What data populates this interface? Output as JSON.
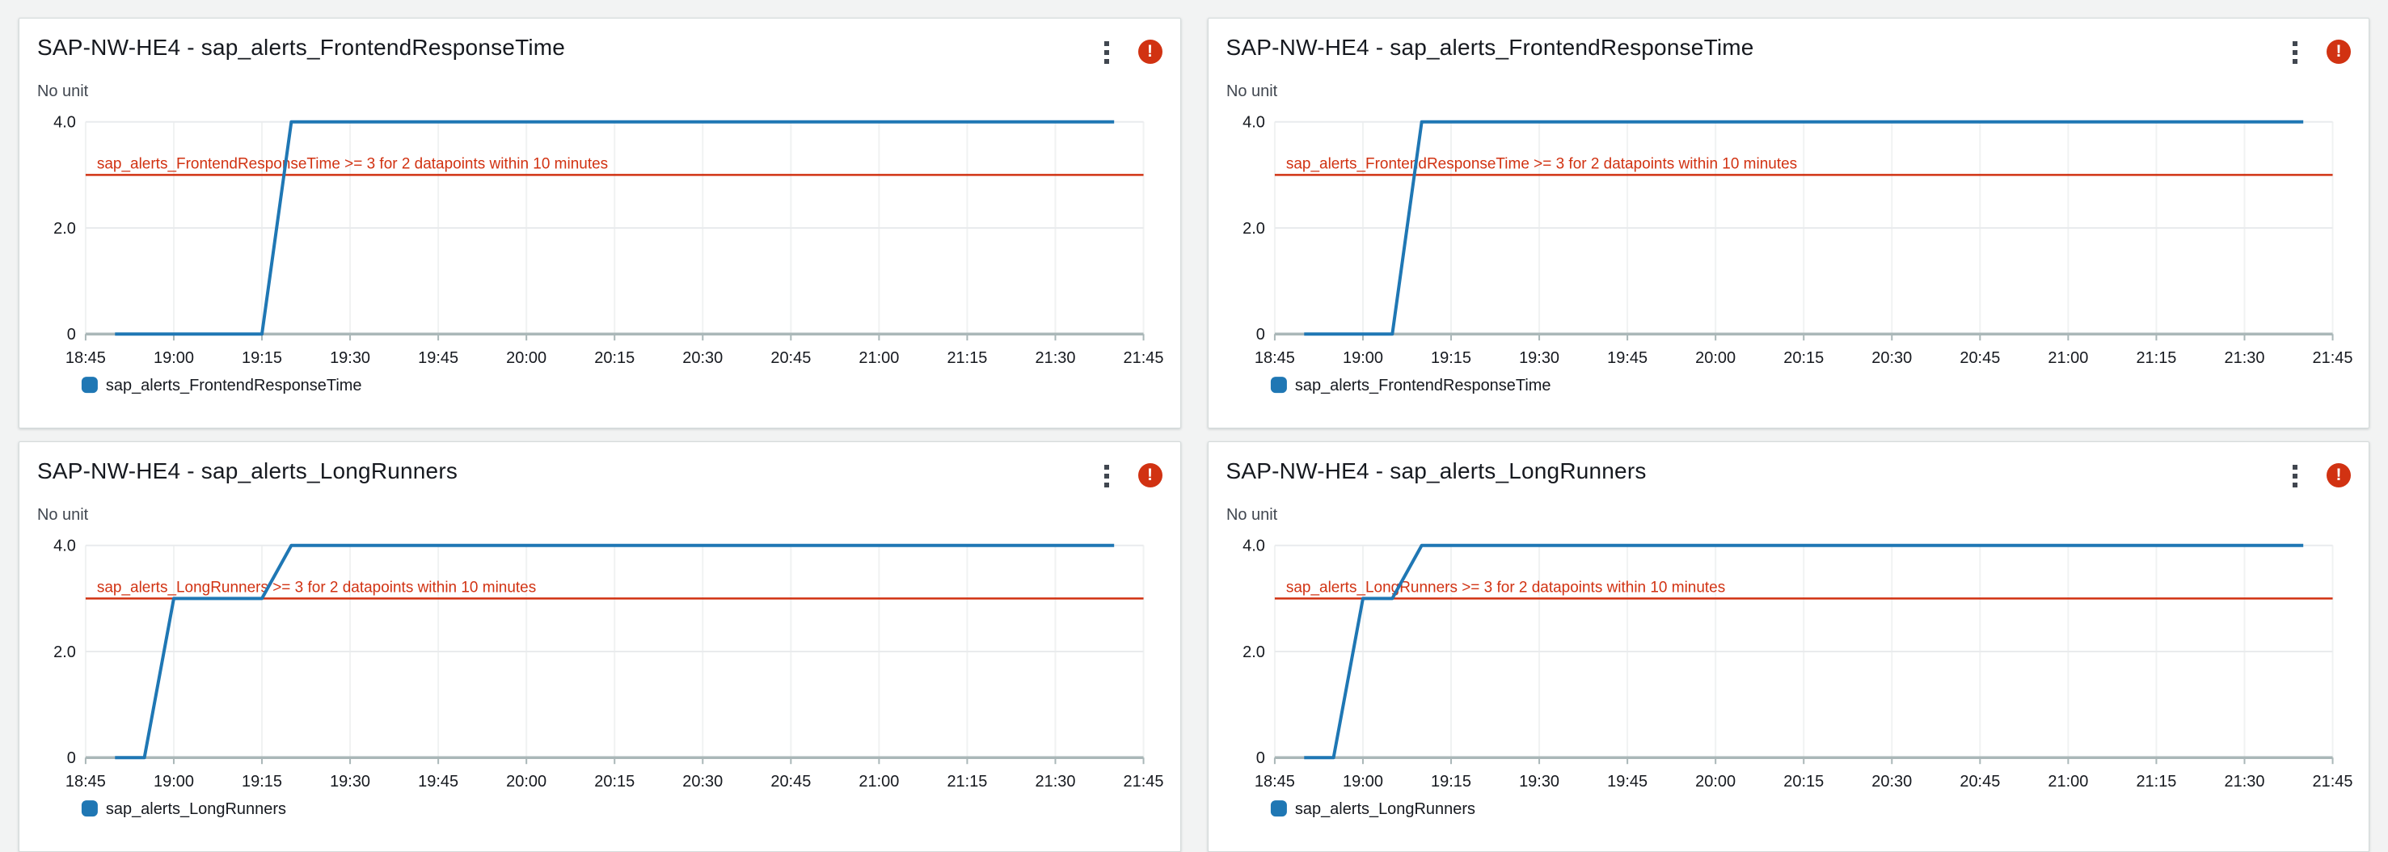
{
  "page": {
    "background": "#f2f3f3"
  },
  "colors": {
    "series_blue": "#1f77b4",
    "alarm_red": "#d13212",
    "axis_gray": "#aab7b8",
    "grid_light": "#e9ebed",
    "grid_vertical": "#f0f2f2",
    "text_primary": "#16191f",
    "text_secondary": "#414750",
    "panel_border": "#d5dbdb"
  },
  "icons": {
    "alarm_glyph": "!",
    "menu_icon_name": "kebab-menu-icon",
    "alarm_icon_name": "alarm-in-alarm-icon"
  },
  "panels": [
    {
      "title": "SAP-NW-HE4 - sap_alerts_FrontendResponseTime"
    },
    {
      "title": "SAP-NW-HE4 - sap_alerts_FrontendResponseTime"
    },
    {
      "title": "SAP-NW-HE4 - sap_alerts_LongRunners"
    },
    {
      "title": "SAP-NW-HE4 - sap_alerts_LongRunners"
    }
  ],
  "chart_data": [
    {
      "type": "line",
      "title": "SAP-NW-HE4 - sap_alerts_FrontendResponseTime",
      "ylabel": "No unit",
      "xlabel": "",
      "xlim": [
        "18:45",
        "21:45"
      ],
      "ylim": [
        0,
        4.3
      ],
      "grid": true,
      "legend_position": "bottom-left",
      "x_ticks": [
        "18:45",
        "19:00",
        "19:15",
        "19:30",
        "19:45",
        "20:00",
        "20:15",
        "20:30",
        "20:45",
        "21:00",
        "21:15",
        "21:30",
        "21:45"
      ],
      "y_ticks": [
        "0",
        "2.0",
        "4.0"
      ],
      "threshold": {
        "value": 3,
        "label": "sap_alerts_FrontendResponseTime >= 3 for 2 datapoints within 10 minutes",
        "color": "#d13212"
      },
      "series": [
        {
          "name": "sap_alerts_FrontendResponseTime",
          "color": "#1f77b4",
          "points": [
            [
              "18:50",
              0
            ],
            [
              "19:15",
              0
            ],
            [
              "19:20",
              4
            ],
            [
              "21:40",
              4
            ]
          ]
        }
      ]
    },
    {
      "type": "line",
      "title": "SAP-NW-HE4 - sap_alerts_FrontendResponseTime",
      "ylabel": "No unit",
      "xlabel": "",
      "xlim": [
        "18:45",
        "21:45"
      ],
      "ylim": [
        0,
        4.3
      ],
      "grid": true,
      "legend_position": "bottom-left",
      "x_ticks": [
        "18:45",
        "19:00",
        "19:15",
        "19:30",
        "19:45",
        "20:00",
        "20:15",
        "20:30",
        "20:45",
        "21:00",
        "21:15",
        "21:30",
        "21:45"
      ],
      "y_ticks": [
        "0",
        "2.0",
        "4.0"
      ],
      "threshold": {
        "value": 3,
        "label": "sap_alerts_FrontendResponseTime >= 3 for 2 datapoints within 10 minutes",
        "color": "#d13212"
      },
      "series": [
        {
          "name": "sap_alerts_FrontendResponseTime",
          "color": "#1f77b4",
          "points": [
            [
              "18:50",
              0
            ],
            [
              "19:05",
              0
            ],
            [
              "19:10",
              4
            ],
            [
              "21:40",
              4
            ]
          ]
        }
      ]
    },
    {
      "type": "line",
      "title": "SAP-NW-HE4 - sap_alerts_LongRunners",
      "ylabel": "No unit",
      "xlabel": "",
      "xlim": [
        "18:45",
        "21:45"
      ],
      "ylim": [
        0,
        4.3
      ],
      "grid": true,
      "legend_position": "bottom-left",
      "x_ticks": [
        "18:45",
        "19:00",
        "19:15",
        "19:30",
        "19:45",
        "20:00",
        "20:15",
        "20:30",
        "20:45",
        "21:00",
        "21:15",
        "21:30",
        "21:45"
      ],
      "y_ticks": [
        "0",
        "2.0",
        "4.0"
      ],
      "threshold": {
        "value": 3,
        "label": "sap_alerts_LongRunners >= 3 for 2 datapoints within 10 minutes",
        "color": "#d13212"
      },
      "series": [
        {
          "name": "sap_alerts_LongRunners",
          "color": "#1f77b4",
          "points": [
            [
              "18:50",
              0
            ],
            [
              "18:55",
              0
            ],
            [
              "19:00",
              3
            ],
            [
              "19:15",
              3
            ],
            [
              "19:20",
              4
            ],
            [
              "21:40",
              4
            ]
          ]
        }
      ]
    },
    {
      "type": "line",
      "title": "SAP-NW-HE4 - sap_alerts_LongRunners",
      "ylabel": "No unit",
      "xlabel": "",
      "xlim": [
        "18:45",
        "21:45"
      ],
      "ylim": [
        0,
        4.3
      ],
      "grid": true,
      "legend_position": "bottom-left",
      "x_ticks": [
        "18:45",
        "19:00",
        "19:15",
        "19:30",
        "19:45",
        "20:00",
        "20:15",
        "20:30",
        "20:45",
        "21:00",
        "21:15",
        "21:30",
        "21:45"
      ],
      "y_ticks": [
        "0",
        "2.0",
        "4.0"
      ],
      "threshold": {
        "value": 3,
        "label": "sap_alerts_LongRunners >= 3 for 2 datapoints within 10 minutes",
        "color": "#d13212"
      },
      "series": [
        {
          "name": "sap_alerts_LongRunners",
          "color": "#1f77b4",
          "points": [
            [
              "18:50",
              0
            ],
            [
              "18:55",
              0
            ],
            [
              "19:00",
              3
            ],
            [
              "19:05",
              3
            ],
            [
              "19:10",
              4
            ],
            [
              "21:40",
              4
            ]
          ]
        }
      ]
    }
  ]
}
